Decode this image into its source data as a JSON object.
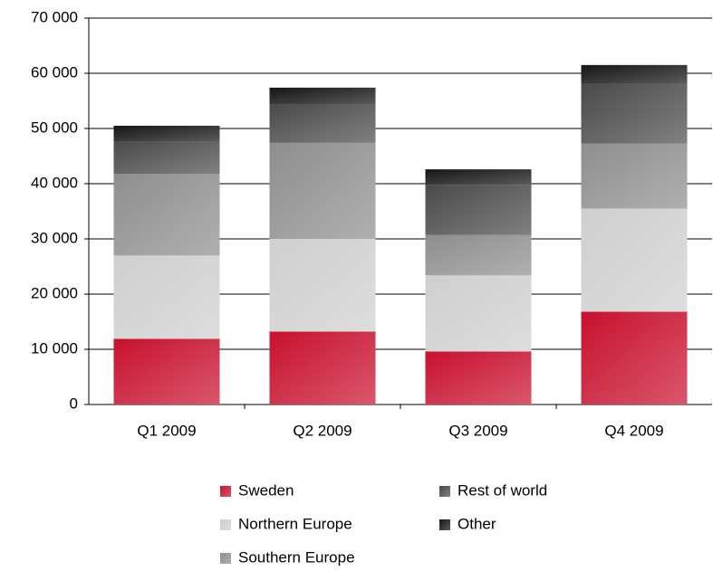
{
  "chart_data": {
    "type": "stacked-bar",
    "categories": [
      "Q1 2009",
      "Q2 2009",
      "Q3 2009",
      "Q4 2009"
    ],
    "series": [
      {
        "name": "Sweden",
        "color": "#c8102e",
        "values": [
          11900,
          13200,
          9600,
          16800
        ]
      },
      {
        "name": "Northern Europe",
        "color": "#cfcfcf",
        "values": [
          15100,
          16800,
          13800,
          18700
        ]
      },
      {
        "name": "Southern Europe",
        "color": "#8e8e8e",
        "values": [
          14800,
          17400,
          7300,
          11800
        ]
      },
      {
        "name": "Rest of world",
        "color": "#4a4a4a",
        "values": [
          5900,
          6900,
          9100,
          10800
        ]
      },
      {
        "name": "Other",
        "color": "#151515",
        "values": [
          2800,
          3100,
          2800,
          3400
        ]
      }
    ],
    "ylim": [
      0,
      70000
    ],
    "yticks": [
      0,
      {
        "value": 10000,
        "label": "10 000"
      },
      {
        "value": 20000,
        "label": "20 000"
      },
      {
        "value": 30000,
        "label": "30 000"
      },
      {
        "value": 40000,
        "label": "40 000"
      },
      {
        "value": 50000,
        "label": "50 000"
      },
      {
        "value": 60000,
        "label": "60 000"
      },
      {
        "value": 70000,
        "label": "70 000"
      }
    ],
    "grid": true
  }
}
